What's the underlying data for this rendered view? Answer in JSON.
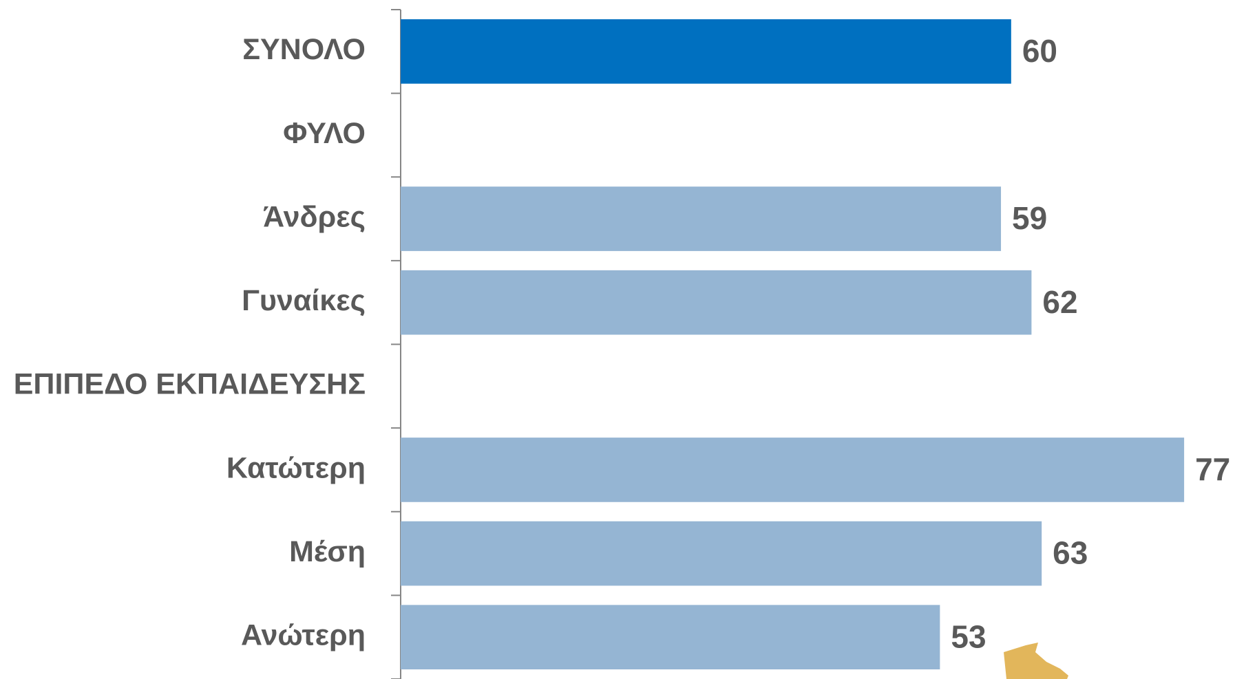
{
  "chart_data": {
    "type": "hbar",
    "categories": [
      "ΣΥΝΟΛΟ",
      "ΦΥΛΟ",
      "Άνδρες",
      "Γυναίκες",
      "ΕΠΙΠΕΔΟ ΕΚΠΑΙΔΕΥΣΗΣ",
      "Κατώτερη",
      "Μέση",
      "Ανώτερη"
    ],
    "values": [
      60,
      null,
      59,
      62,
      null,
      77,
      63,
      53
    ],
    "colors": [
      "#0070c0",
      null,
      "#95b5d3",
      "#95b5d3",
      null,
      "#95b5d3",
      "#95b5d3",
      "#95b5d3"
    ],
    "xlim": [
      0,
      82
    ]
  }
}
